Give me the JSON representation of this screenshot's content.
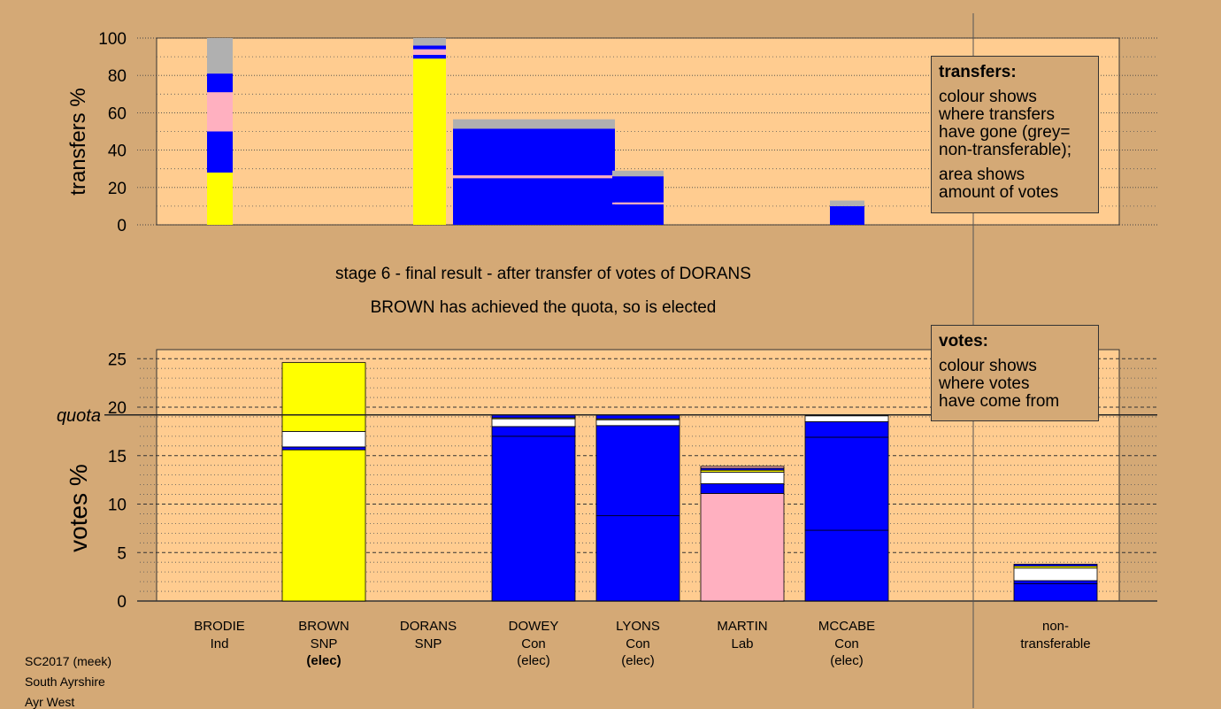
{
  "captions": {
    "stage": "stage 6 - final result - after transfer of votes of DORANS",
    "result": "BROWN has achieved the quota, so is elected"
  },
  "legend_transfers": {
    "title": "transfers:",
    "line1": "colour shows",
    "line2": "where transfers",
    "line3": "have gone (grey=",
    "line4": "non-transferable);",
    "line5": "area shows",
    "line6": "amount of votes"
  },
  "legend_votes": {
    "title": "votes:",
    "line1": "colour shows",
    "line2": "where votes",
    "line3": "have come from"
  },
  "footer": {
    "line1": "SC2017 (meek)",
    "line2": "South Ayrshire",
    "line3": "Ayr West"
  },
  "colors": {
    "background": "#d4a976",
    "plot": "#ffcc90",
    "SNP": "#ffff00",
    "Con": "#0000ff",
    "Lab": "#ffb0c0",
    "Ind": "#ffffff",
    "nontransferable": "#b0b0b0",
    "separator": "#000066"
  },
  "chart_data": [
    {
      "type": "bar",
      "ylabel": "transfers %",
      "ylim": [
        0,
        100
      ],
      "yticks": [
        0,
        20,
        40,
        60,
        80,
        100
      ],
      "grid": true,
      "columns": [
        {
          "label": "BRODIE",
          "segments": [
            {
              "party": "SNP",
              "value": 28
            },
            {
              "party": "Con",
              "value": 22
            },
            {
              "party": "Lab",
              "value": 21
            },
            {
              "party": "Con",
              "value": 10
            },
            {
              "party": "nontransferable",
              "value": 19
            }
          ]
        },
        {
          "label": "DORANS",
          "segments": [
            {
              "party": "SNP",
              "value": 89
            },
            {
              "party": "Con",
              "value": 2
            },
            {
              "party": "Lab",
              "value": 3
            },
            {
              "party": "Con",
              "value": 2
            },
            {
              "party": "nontransferable",
              "value": 4
            }
          ]
        },
        {
          "label": "DOWEY",
          "segments": [
            {
              "party": "Con",
              "value": 25
            },
            {
              "party": "Lab",
              "value": 1.5
            },
            {
              "party": "Con",
              "value": 25
            },
            {
              "party": "nontransferable",
              "value": 5
            }
          ]
        },
        {
          "label": "LYONS",
          "segments": [
            {
              "party": "Con",
              "value": 11
            },
            {
              "party": "Lab",
              "value": 1
            },
            {
              "party": "Con",
              "value": 14
            },
            {
              "party": "nontransferable",
              "value": 3
            }
          ]
        },
        {
          "label": "MCCABE",
          "segments": [
            {
              "party": "Con",
              "value": 10
            },
            {
              "party": "nontransferable",
              "value": 3
            }
          ]
        }
      ]
    },
    {
      "type": "bar",
      "ylabel": "votes %",
      "ylim": [
        0,
        25
      ],
      "yticks": [
        0,
        5,
        10,
        15,
        20,
        25
      ],
      "quota": 19.2,
      "quota_label": "quota",
      "grid": true,
      "candidates": [
        {
          "name": "BRODIE",
          "party": "Ind",
          "status": "",
          "segments": []
        },
        {
          "name": "BROWN",
          "party": "SNP",
          "status": "(elec)",
          "segments": [
            {
              "party": "SNP",
              "value": 15.6
            },
            {
              "party": "Con",
              "value": 0.3
            },
            {
              "party": "Ind",
              "value": 1.6
            },
            {
              "party": "SNP",
              "value": 7.1
            }
          ]
        },
        {
          "name": "DORANS",
          "party": "SNP",
          "status": "",
          "segments": []
        },
        {
          "name": "DOWEY",
          "party": "Con",
          "status": "(elec)",
          "segments": [
            {
              "party": "Con",
              "value": 17.0
            },
            {
              "party": "Con",
              "value": 1.0
            },
            {
              "party": "Ind",
              "value": 0.8
            },
            {
              "party": "SNP",
              "value": 0.1
            },
            {
              "party": "Con",
              "value": 0.3
            }
          ]
        },
        {
          "name": "LYONS",
          "party": "Con",
          "status": "(elec)",
          "segments": [
            {
              "party": "Con",
              "value": 8.8
            },
            {
              "party": "Con",
              "value": 9.3
            },
            {
              "party": "Ind",
              "value": 0.6
            },
            {
              "party": "SNP",
              "value": 0.1
            },
            {
              "party": "Con",
              "value": 0.4
            }
          ]
        },
        {
          "name": "MARTIN",
          "party": "Lab",
          "status": "",
          "segments": [
            {
              "party": "Lab",
              "value": 11.1
            },
            {
              "party": "Con",
              "value": 1.0
            },
            {
              "party": "Ind",
              "value": 1.2
            },
            {
              "party": "SNP",
              "value": 0.2
            },
            {
              "party": "Con",
              "value": 0.2
            },
            {
              "party": "Lab",
              "value": 0.2
            }
          ]
        },
        {
          "name": "MCCABE",
          "party": "Con",
          "status": "(elec)",
          "segments": [
            {
              "party": "Con",
              "value": 7.3
            },
            {
              "party": "Con",
              "value": 9.6
            },
            {
              "party": "Con",
              "value": 1.6
            },
            {
              "party": "Ind",
              "value": 0.6
            }
          ]
        },
        {
          "name": "non-",
          "party": "transferable",
          "status": "",
          "segments": [
            {
              "party": "Con",
              "value": 1.8
            },
            {
              "party": "Con",
              "value": 0.3
            },
            {
              "party": "Ind",
              "value": 1.3
            },
            {
              "party": "SNP",
              "value": 0.2
            },
            {
              "party": "Con",
              "value": 0.2
            }
          ]
        }
      ]
    }
  ]
}
